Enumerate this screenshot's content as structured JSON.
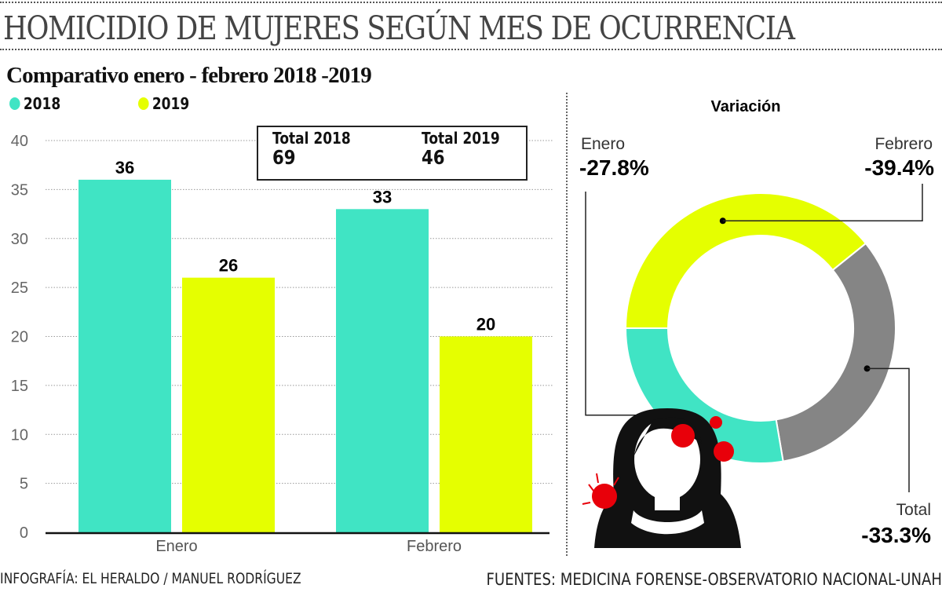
{
  "title": "HOMICIDIO DE MUJERES SEGÚN MES DE OCURRENCIA",
  "subtitle": "Comparativo enero - febrero 2018 -2019",
  "colors": {
    "y2018": "#40e4c4",
    "y2019": "#e5ff00",
    "total": "#858585",
    "blood": "#e8000a"
  },
  "totals": {
    "label_2018": "Total 2018",
    "value_2018": "69",
    "label_2019": "Total 2019",
    "value_2019": "46"
  },
  "footer": {
    "credit": "INFOGRAFÍA: EL HERALDO / MANUEL RODRÍGUEZ",
    "source": "FUENTES: MEDICINA FORENSE-OBSERVATORIO NACIONAL-UNAH"
  },
  "chart_data": [
    {
      "type": "bar",
      "title": "Comparativo enero - febrero 2018 -2019",
      "categories": [
        "Enero",
        "Febrero"
      ],
      "series": [
        {
          "name": "2018",
          "values": [
            36,
            33
          ]
        },
        {
          "name": "2019",
          "values": [
            26,
            20
          ]
        }
      ],
      "ylim": [
        0,
        40
      ],
      "yticks": [
        0,
        5,
        10,
        15,
        20,
        25,
        30,
        35,
        40
      ],
      "grid": true,
      "legend": "top-left"
    },
    {
      "type": "pie",
      "title": "Variación",
      "slices": [
        {
          "label": "Febrero",
          "value": -39.4,
          "display": "-39.4%"
        },
        {
          "label": "Total",
          "value": -33.3,
          "display": "-33.3%"
        },
        {
          "label": "Enero",
          "value": -27.8,
          "display": "-27.8%"
        }
      ]
    }
  ]
}
